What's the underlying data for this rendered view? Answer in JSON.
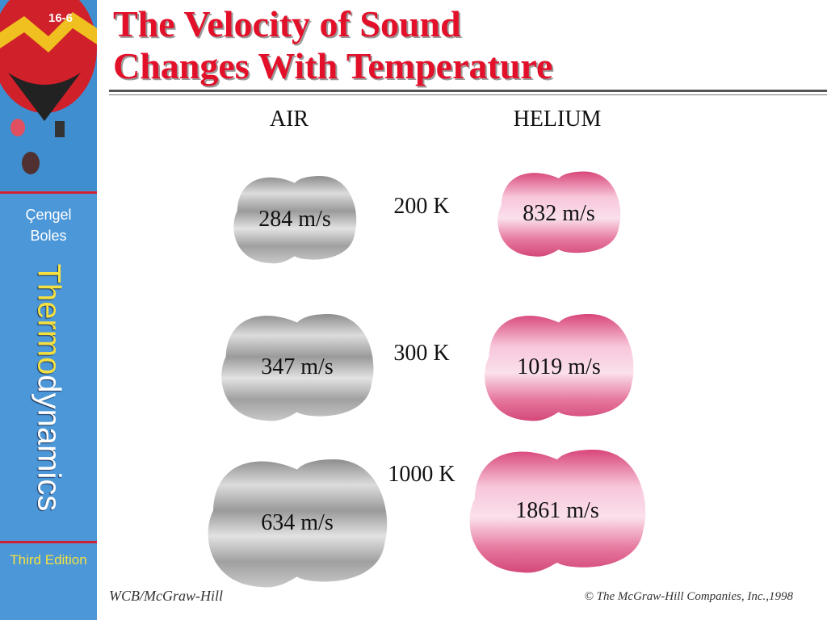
{
  "slide_number": "16-6",
  "sidebar": {
    "authors": [
      "Çengel",
      "Boles"
    ],
    "book_title_parts": [
      "Thermo",
      "dynamics"
    ],
    "edition": "Third Edition"
  },
  "title_lines": [
    "The Velocity of Sound",
    "Changes With Temperature"
  ],
  "columns": [
    "AIR",
    "HELIUM"
  ],
  "rows": [
    {
      "temperature": "200 K",
      "air": "284 m/s",
      "helium": "832 m/s"
    },
    {
      "temperature": "300 K",
      "air": "347 m/s",
      "helium": "1019 m/s"
    },
    {
      "temperature": "1000 K",
      "air": "634 m/s",
      "helium": "1861 m/s"
    }
  ],
  "footer": {
    "publisher": "WCB/McGraw-Hill",
    "copyright": "© The McGraw-Hill Companies, Inc.,1998"
  }
}
